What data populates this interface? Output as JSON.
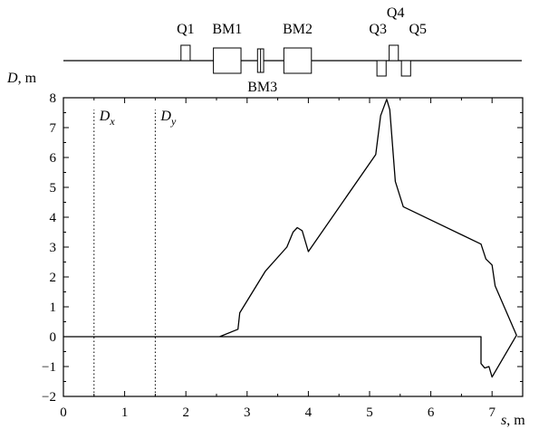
{
  "chart_data": {
    "type": "line",
    "xlabel_var": "s",
    "xlabel_unit": ", m",
    "ylabel_var": "D",
    "ylabel_unit": ", m",
    "xlim": [
      0,
      7.5
    ],
    "ylim": [
      -2,
      8
    ],
    "xticks": [
      0,
      1,
      2,
      3,
      4,
      5,
      6,
      7
    ],
    "yticks": [
      -2,
      -1,
      0,
      1,
      2,
      3,
      4,
      5,
      6,
      7,
      8
    ],
    "grid": false,
    "legend": "none",
    "series": [
      {
        "label_main": "D",
        "label_sub": "x",
        "x": [
          0.5,
          0.5
        ],
        "y": [
          -2,
          7.6
        ],
        "style": "dotted"
      },
      {
        "label_main": "D",
        "label_sub": "y",
        "x": [
          1.5,
          1.5
        ],
        "y": [
          -2,
          7.6
        ],
        "style": "dotted"
      },
      {
        "style": "solid",
        "x": [
          0,
          2.55,
          2.85,
          2.88,
          3.3,
          3.65,
          3.75,
          3.82,
          3.9,
          4.0,
          5.1,
          5.18,
          5.28,
          5.33,
          5.42,
          5.55,
          6.82,
          6.9,
          7.0,
          7.05,
          7.4,
          7.0,
          6.95,
          6.88,
          6.82,
          6.82,
          0
        ],
        "y": [
          0,
          0,
          0.25,
          0.8,
          2.2,
          3.0,
          3.5,
          3.65,
          3.55,
          2.85,
          6.1,
          7.4,
          7.95,
          7.6,
          5.2,
          4.35,
          3.1,
          2.6,
          2.4,
          1.7,
          0.05,
          -1.35,
          -1.0,
          -1.05,
          -0.9,
          0,
          0
        ],
        "points": [
          [
            0,
            0
          ],
          [
            2.55,
            0
          ],
          [
            2.85,
            0.25
          ],
          [
            2.88,
            0.8
          ],
          [
            3.3,
            2.2
          ],
          [
            3.65,
            3.0
          ],
          [
            3.75,
            3.5
          ],
          [
            3.82,
            3.65
          ],
          [
            3.9,
            3.55
          ],
          [
            4.0,
            2.85
          ],
          [
            5.1,
            6.1
          ],
          [
            5.18,
            7.4
          ],
          [
            5.28,
            7.95
          ],
          [
            5.33,
            7.6
          ],
          [
            5.42,
            5.2
          ],
          [
            5.55,
            4.35
          ],
          [
            6.82,
            3.1
          ],
          [
            6.9,
            2.6
          ],
          [
            7.0,
            2.4
          ],
          [
            7.05,
            1.7
          ],
          [
            7.4,
            0.05
          ],
          [
            7.0,
            -1.35
          ],
          [
            6.95,
            -1.0
          ],
          [
            6.88,
            -1.05
          ],
          [
            6.82,
            -0.9
          ],
          [
            6.82,
            0
          ],
          [
            0,
            0
          ]
        ]
      }
    ],
    "lattice": {
      "elements": [
        {
          "name": "Q1",
          "s_start": 1.92,
          "s_end": 2.07,
          "side": "above"
        },
        {
          "name": "BM1",
          "s_start": 2.45,
          "s_end": 2.9,
          "side": "center"
        },
        {
          "name": "BM3",
          "s_start": 3.17,
          "s_end": 3.27,
          "side": "center"
        },
        {
          "name": "BM2",
          "s_start": 3.6,
          "s_end": 4.05,
          "side": "center"
        },
        {
          "name": "Q3",
          "s_start": 5.12,
          "s_end": 5.27,
          "side": "below"
        },
        {
          "name": "Q4",
          "s_start": 5.32,
          "s_end": 5.47,
          "side": "above"
        },
        {
          "name": "Q5",
          "s_start": 5.52,
          "s_end": 5.67,
          "side": "below"
        }
      ]
    }
  }
}
